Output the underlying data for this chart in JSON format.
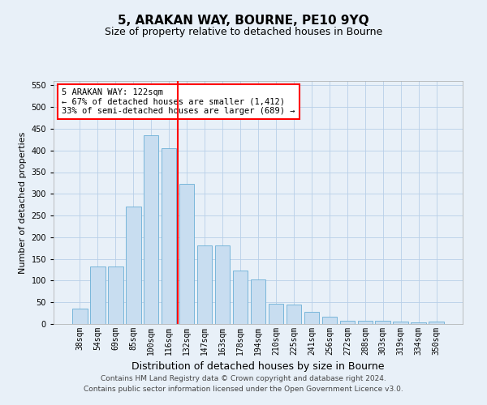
{
  "title": "5, ARAKAN WAY, BOURNE, PE10 9YQ",
  "subtitle": "Size of property relative to detached houses in Bourne",
  "xlabel": "Distribution of detached houses by size in Bourne",
  "ylabel": "Number of detached properties",
  "categories": [
    "38sqm",
    "54sqm",
    "69sqm",
    "85sqm",
    "100sqm",
    "116sqm",
    "132sqm",
    "147sqm",
    "163sqm",
    "178sqm",
    "194sqm",
    "210sqm",
    "225sqm",
    "241sqm",
    "256sqm",
    "272sqm",
    "288sqm",
    "303sqm",
    "319sqm",
    "334sqm",
    "350sqm"
  ],
  "values": [
    35,
    133,
    133,
    270,
    435,
    405,
    323,
    182,
    182,
    124,
    103,
    47,
    45,
    28,
    16,
    7,
    7,
    8,
    5,
    4,
    5
  ],
  "bar_color": "#c8ddf0",
  "bar_edge_color": "#6aafd6",
  "grid_color": "#b8cfe8",
  "bg_color": "#e8f0f8",
  "vline_x": 5.5,
  "vline_color": "red",
  "annotation_text": "5 ARAKAN WAY: 122sqm\n← 67% of detached houses are smaller (1,412)\n33% of semi-detached houses are larger (689) →",
  "annotation_box_color": "#ffffff",
  "annotation_box_edge": "red",
  "ylim": [
    0,
    560
  ],
  "yticks": [
    0,
    50,
    100,
    150,
    200,
    250,
    300,
    350,
    400,
    450,
    500,
    550
  ],
  "footer1": "Contains HM Land Registry data © Crown copyright and database right 2024.",
  "footer2": "Contains public sector information licensed under the Open Government Licence v3.0.",
  "title_fontsize": 11,
  "subtitle_fontsize": 9,
  "xlabel_fontsize": 9,
  "ylabel_fontsize": 8,
  "tick_fontsize": 7,
  "footer_fontsize": 6.5,
  "ann_fontsize": 7.5
}
